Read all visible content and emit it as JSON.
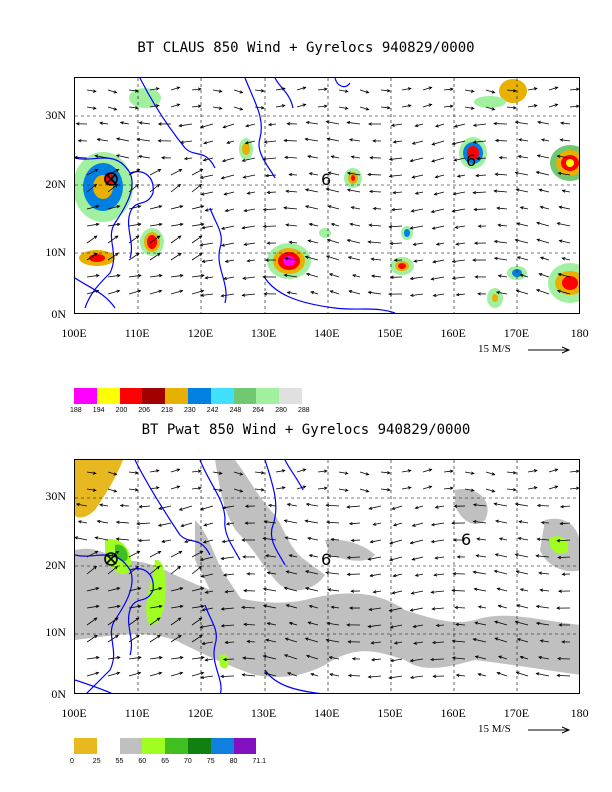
{
  "panel1": {
    "title": "BT CLAUS 850 Wind + Gyrelocs 940829/0000",
    "y_labels": [
      "30N",
      "20N",
      "10N",
      "0N"
    ],
    "x_labels": [
      "100E",
      "110E",
      "120E",
      "130E",
      "140E",
      "150E",
      "160E",
      "170E",
      "180"
    ],
    "vector_ref": "15 M/S",
    "legend": {
      "colors": [
        "#ff00ff",
        "#ffff00",
        "#ff0000",
        "#a00000",
        "#e8b000",
        "#0080e0",
        "#40e0ff",
        "#70c870",
        "#a0f0a0",
        "#e0e0e0"
      ],
      "labels": [
        "188",
        "194",
        "200",
        "206",
        "218",
        "230",
        "242",
        "248",
        "264",
        "280",
        "288"
      ]
    }
  },
  "panel2": {
    "title": "BT Pwat 850 Wind + Gyrelocs 940829/0000",
    "y_labels": [
      "30N",
      "20N",
      "10N",
      "0N"
    ],
    "x_labels": [
      "100E",
      "110E",
      "120E",
      "130E",
      "140E",
      "150E",
      "160E",
      "170E",
      "180"
    ],
    "vector_ref": "15 M/S",
    "legend": {
      "colors": [
        "#e8b820",
        "#ffffff",
        "#c0c0c0",
        "#a0ff20",
        "#40c020",
        "#108010",
        "#1080e0",
        "#8010c0"
      ],
      "labels": [
        "0",
        "25",
        "55",
        "60",
        "65",
        "70",
        "75",
        "80",
        "71.1"
      ]
    }
  },
  "colors": {
    "coast": "#0000ff",
    "grid": "#000000"
  }
}
